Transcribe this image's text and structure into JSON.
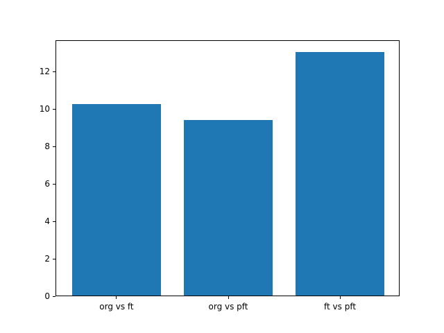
{
  "chart_data": {
    "type": "bar",
    "categories": [
      "org vs ft",
      "org vs pft",
      "ft vs pft"
    ],
    "values": [
      10.2,
      9.35,
      13.0
    ],
    "title": "",
    "xlabel": "",
    "ylabel": "",
    "ylim": [
      0,
      13.65
    ],
    "yticks": [
      0,
      2,
      4,
      6,
      8,
      10,
      12
    ],
    "bar_color": "#1f77b4",
    "bar_width_units": 0.8,
    "grid": false,
    "legend": null
  }
}
